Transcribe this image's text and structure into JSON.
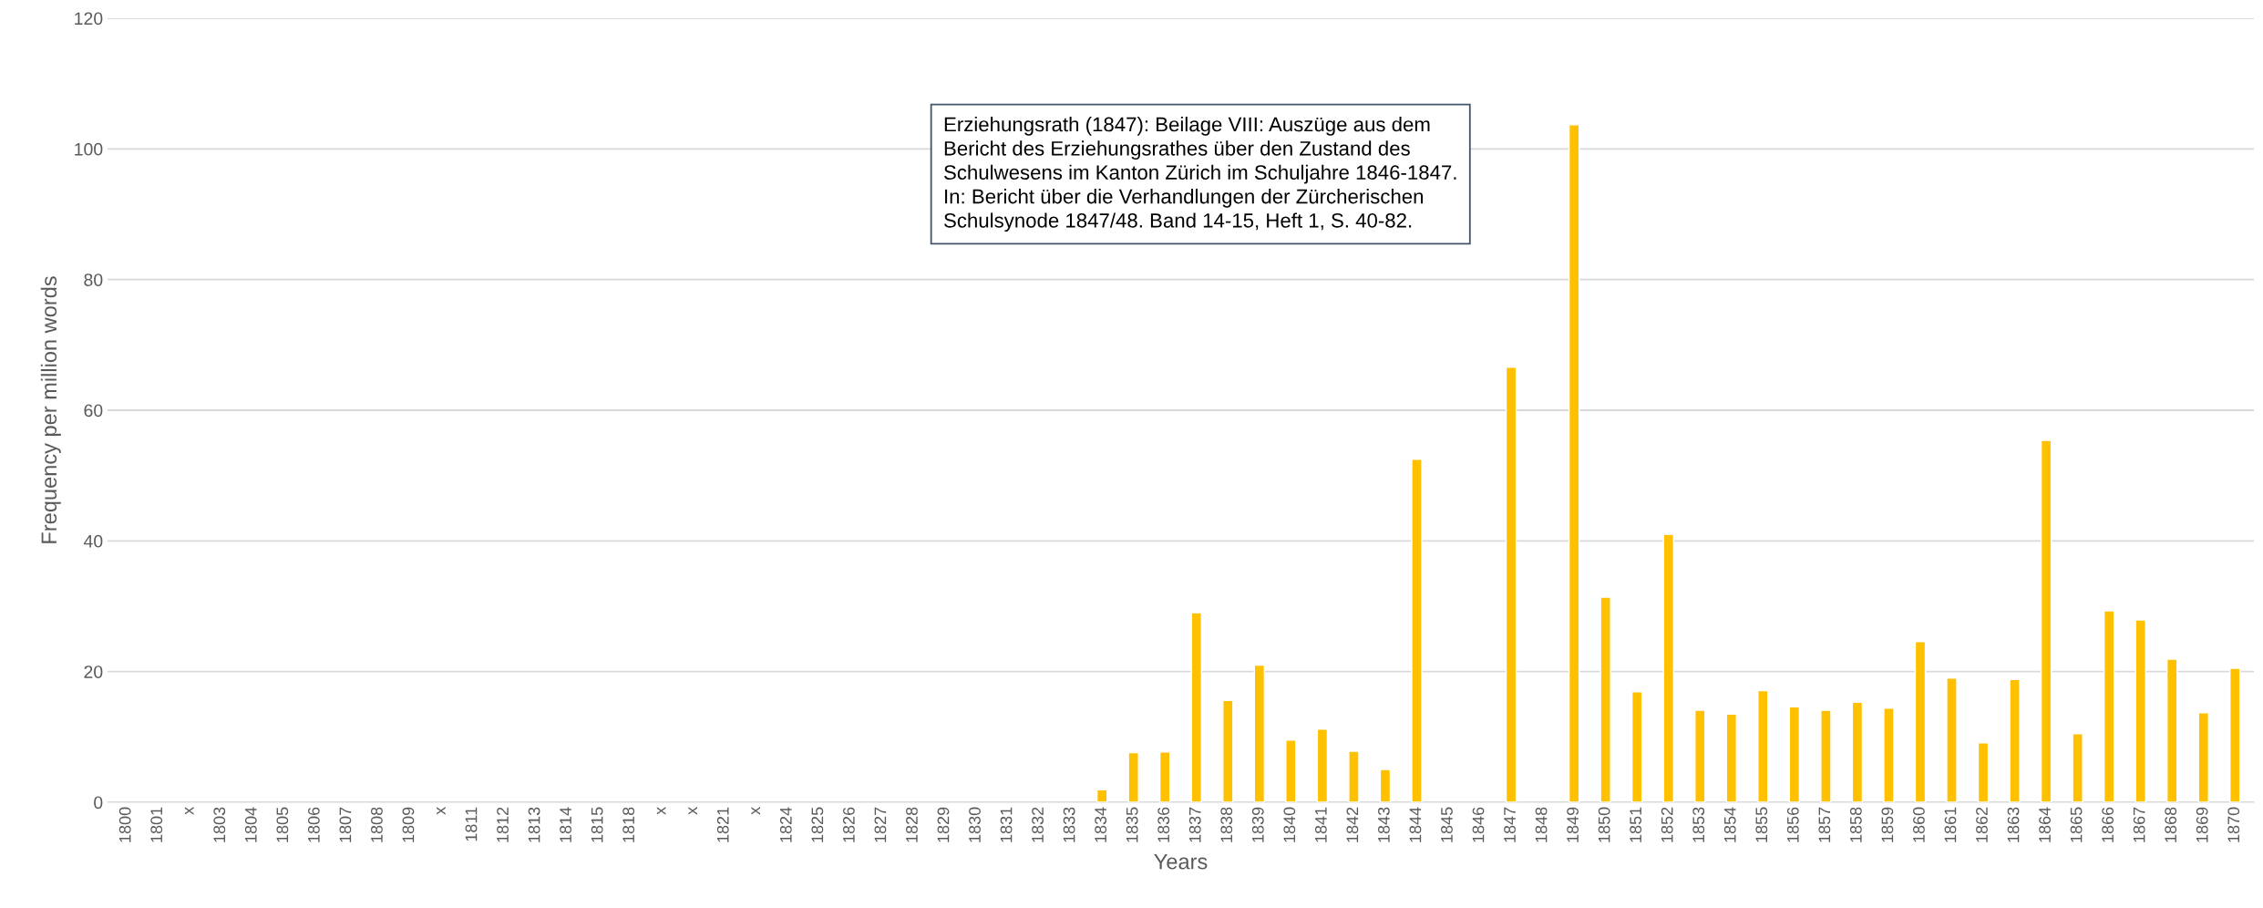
{
  "chart_data": {
    "type": "bar",
    "categories": [
      "1800",
      "1801",
      "x",
      "1803",
      "1804",
      "1805",
      "1806",
      "1807",
      "1808",
      "1809",
      "x",
      "1811",
      "1812",
      "1813",
      "1814",
      "1815",
      "1818",
      "x",
      "x",
      "1821",
      "x",
      "1824",
      "1825",
      "1826",
      "1827",
      "1828",
      "1829",
      "1830",
      "1831",
      "1832",
      "1833",
      "1834",
      "1835",
      "1836",
      "1837",
      "1838",
      "1839",
      "1840",
      "1841",
      "1842",
      "1843",
      "1844",
      "1845",
      "1846",
      "1847",
      "1848",
      "1849",
      "1850",
      "1851",
      "1852",
      "1853",
      "1854",
      "1855",
      "1856",
      "1857",
      "1858",
      "1859",
      "1860",
      "1861",
      "1862",
      "1863",
      "1864",
      "1865",
      "1866",
      "1867",
      "1868",
      "1869",
      "1870"
    ],
    "values": [
      null,
      null,
      null,
      null,
      null,
      null,
      null,
      null,
      null,
      null,
      null,
      null,
      null,
      null,
      null,
      null,
      null,
      null,
      null,
      null,
      null,
      null,
      null,
      null,
      null,
      null,
      null,
      null,
      null,
      null,
      null,
      1.9,
      7.6,
      7.7,
      29.0,
      15.6,
      21.0,
      9.5,
      11.2,
      7.8,
      5.0,
      52.5,
      null,
      null,
      66.6,
      null,
      103.7,
      31.4,
      16.9,
      41.0,
      14.1,
      13.5,
      17.1,
      14.6,
      14.1,
      15.3,
      14.4,
      24.6,
      19.0,
      9.1,
      18.8,
      55.4,
      10.5,
      29.3,
      27.9,
      21.9,
      13.7,
      20.5
    ],
    "color": "#ffc000",
    "xlabel": "Years",
    "ylabel": "Frequency per million words",
    "ylim": [
      0,
      120
    ],
    "yticks": [
      0,
      20,
      40,
      60,
      80,
      100,
      120
    ],
    "grid": "y",
    "annotations": [
      "Erziehungsrath (1847): Beilage VIII: Auszüge aus dem\nBericht des Erziehungsrathes über den Zustand des\nSchulwesens im Kanton Zürich im Schuljahre 1846-1847.\nIn: Bericht über die Verhandlungen der Zürcherischen\nSchulsynode 1847/48. Band 14-15, Heft 1, S. 40-82."
    ]
  }
}
